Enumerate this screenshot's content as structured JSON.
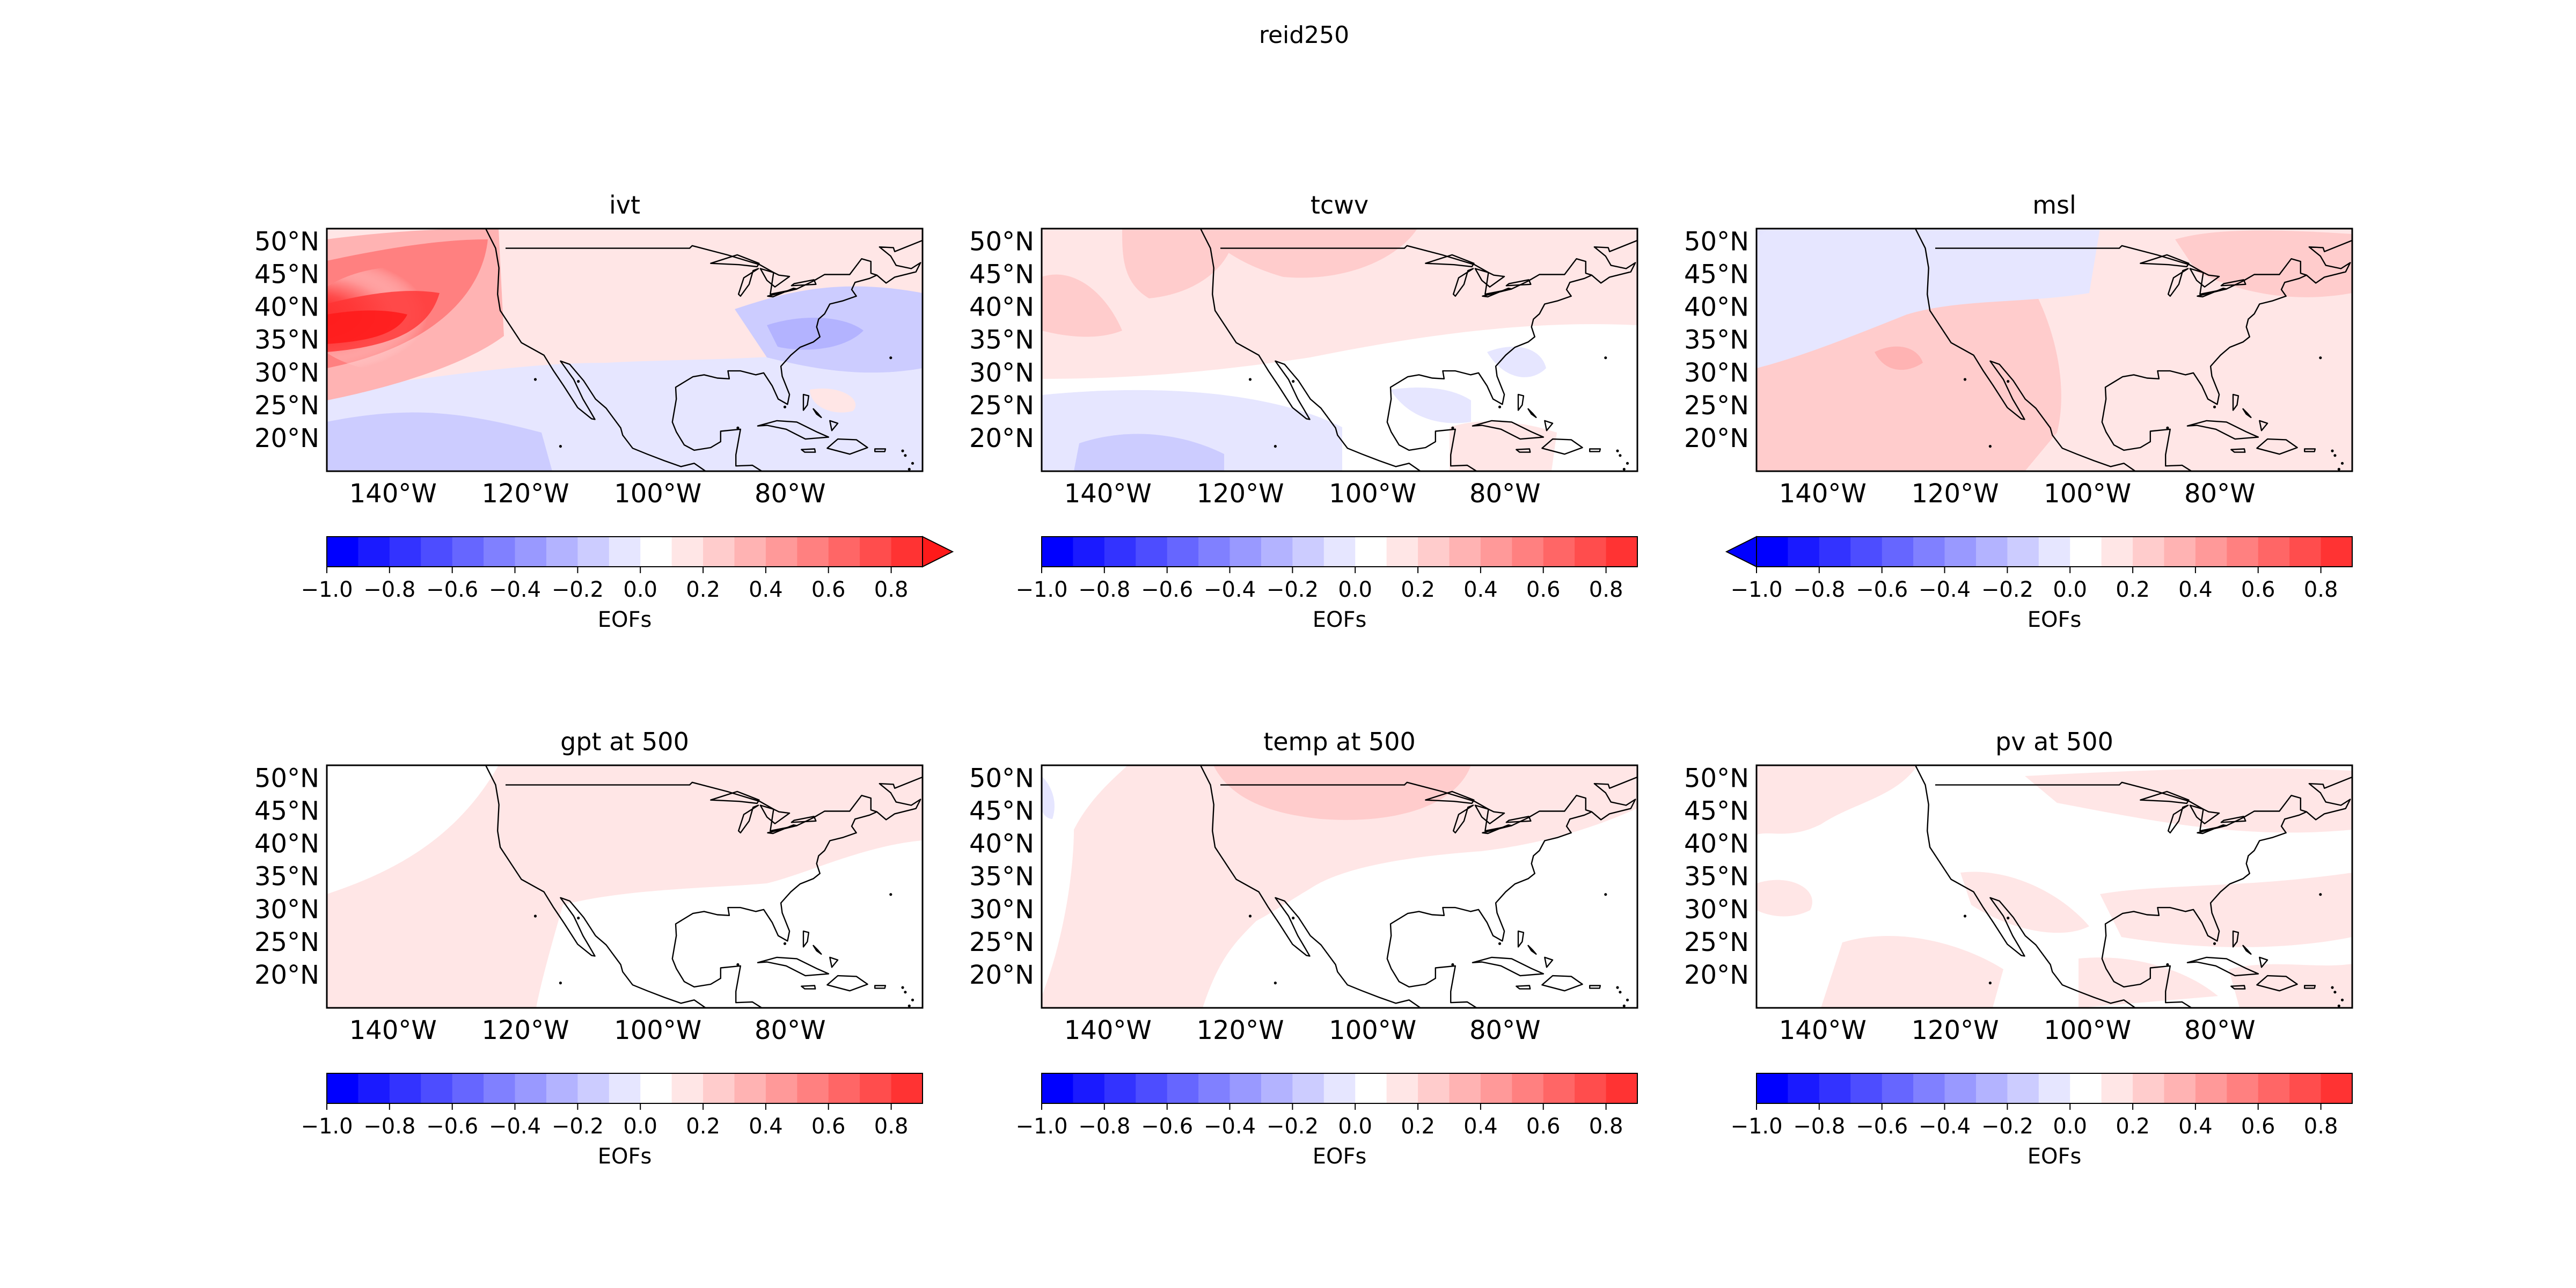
{
  "figure": {
    "suptitle": "reid250"
  },
  "colorbar": {
    "label": "EOFs",
    "ticks": [
      "−1.0",
      "−0.8",
      "−0.6",
      "−0.4",
      "−0.2",
      "0.0",
      "0.2",
      "0.4",
      "0.6",
      "0.8"
    ],
    "levels": [
      -1.0,
      -0.9,
      -0.8,
      -0.7,
      -0.6,
      -0.5,
      -0.4,
      -0.3,
      -0.2,
      -0.1,
      0.0,
      0.1,
      0.2,
      0.3,
      0.4,
      0.5,
      0.6,
      0.7,
      0.8,
      0.9
    ],
    "colormap": "bwr",
    "colors": [
      "#0000ff",
      "#1a1aff",
      "#3333ff",
      "#4d4dff",
      "#6666ff",
      "#8080ff",
      "#9999ff",
      "#b3b3ff",
      "#ccccff",
      "#e6e6ff",
      "#ffffff",
      "#ffe6e6",
      "#ffcccc",
      "#ffb3b3",
      "#ff9999",
      "#ff8080",
      "#ff6666",
      "#ff4d4d",
      "#ff3333",
      "#ff1a1a"
    ]
  },
  "axes": {
    "lat_labels": [
      "50°N",
      "45°N",
      "40°N",
      "35°N",
      "30°N",
      "25°N",
      "20°N"
    ],
    "lon_labels": [
      "140°W",
      "120°W",
      "100°W",
      "80°W"
    ],
    "lat_values": [
      50,
      45,
      40,
      35,
      30,
      25,
      20
    ],
    "lon_values": [
      -140,
      -120,
      -100,
      -80
    ],
    "extent": {
      "lon_min": -150,
      "lon_max": -60,
      "lat_min": 15,
      "lat_max": 52
    }
  },
  "chart_data": [
    {
      "type": "heatmap",
      "title": "ivt",
      "colorbar_extend": "max",
      "colorbar_label": "EOFs"
    },
    {
      "type": "heatmap",
      "title": "tcwv",
      "colorbar_extend": "neither",
      "colorbar_label": "EOFs"
    },
    {
      "type": "heatmap",
      "title": "msl",
      "colorbar_extend": "min",
      "colorbar_label": "EOFs"
    },
    {
      "type": "heatmap",
      "title": "gpt at 500",
      "colorbar_extend": "neither",
      "colorbar_label": "EOFs"
    },
    {
      "type": "heatmap",
      "title": "temp at 500",
      "colorbar_extend": "neither",
      "colorbar_label": "EOFs"
    },
    {
      "type": "heatmap",
      "title": "pv at 500",
      "colorbar_extend": "neither",
      "colorbar_label": "EOFs"
    }
  ]
}
